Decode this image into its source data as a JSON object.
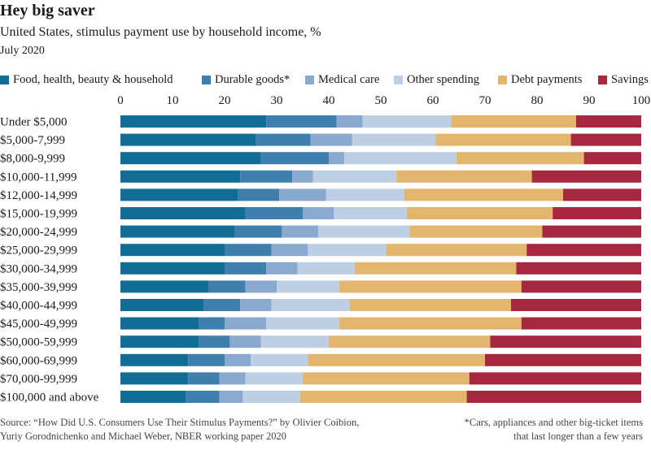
{
  "header": {
    "title": "Hey big saver",
    "subtitle": "United States, stimulus payment use by household income, %",
    "period": "July 2020"
  },
  "footer": {
    "source_line1": "Source: “How Did U.S. Consumers Use Their Stimulus Payments?” by Olivier Coibion,",
    "source_line2": "Yuriy Gorodnichenko and Michael Weber, NBER working paper 2020",
    "note_line1": "*Cars, appliances and other big-ticket items",
    "note_line2": "that last longer than a few years"
  },
  "chart_data": {
    "type": "bar",
    "orientation": "horizontal",
    "stacked": true,
    "xlim": [
      0,
      100
    ],
    "xticks": [
      0,
      10,
      20,
      30,
      40,
      50,
      60,
      70,
      80,
      90,
      100
    ],
    "grid": false,
    "legend_position": "top",
    "categories": [
      "Under $5,000",
      "$5,000-7,999",
      "$8,000-9,999",
      "$10,000-11,999",
      "$12,000-14,999",
      "$15,000-19,999",
      "$20,000-24,999",
      "$25,000-29,999",
      "$30,000-34,999",
      "$35,000-39,999",
      "$40,000-44,999",
      "$45,000-49,999",
      "$50,000-59,999",
      "$60,000-69,999",
      "$70,000-99,999",
      "$100,000 and above"
    ],
    "series": [
      {
        "name": "Food, health, beauty & household",
        "color": "#116d96",
        "values": [
          28,
          26,
          27,
          23,
          22.5,
          24,
          22,
          20,
          20,
          17,
          16,
          15,
          15,
          13,
          13,
          12.5
        ]
      },
      {
        "name": "Durable goods*",
        "color": "#3f7fad",
        "values": [
          13.5,
          10.5,
          13,
          10,
          8,
          11,
          9,
          9,
          8,
          7,
          7,
          5,
          6,
          7,
          6,
          6.5
        ]
      },
      {
        "name": "Medical care",
        "color": "#8aa9cf",
        "values": [
          5,
          8,
          3,
          4,
          9,
          6,
          7,
          7,
          6,
          6,
          6,
          8,
          6,
          5,
          5,
          4.5
        ]
      },
      {
        "name": "Other spending",
        "color": "#bdcfe4",
        "values": [
          17,
          16,
          21.5,
          16,
          15,
          14,
          17.5,
          15,
          11,
          12,
          15,
          14,
          13,
          11,
          11,
          11
        ]
      },
      {
        "name": "Debt payments",
        "color": "#e3b56d",
        "values": [
          24,
          26,
          24.5,
          26,
          30.5,
          28,
          25.5,
          27,
          31,
          35,
          31,
          35,
          31,
          34,
          32,
          32
        ]
      },
      {
        "name": "Savings",
        "color": "#a6283e",
        "values": [
          12.5,
          13.5,
          11,
          21,
          15,
          17,
          19,
          22,
          24,
          23,
          25,
          23,
          29,
          30,
          33,
          33.5
        ]
      }
    ]
  }
}
